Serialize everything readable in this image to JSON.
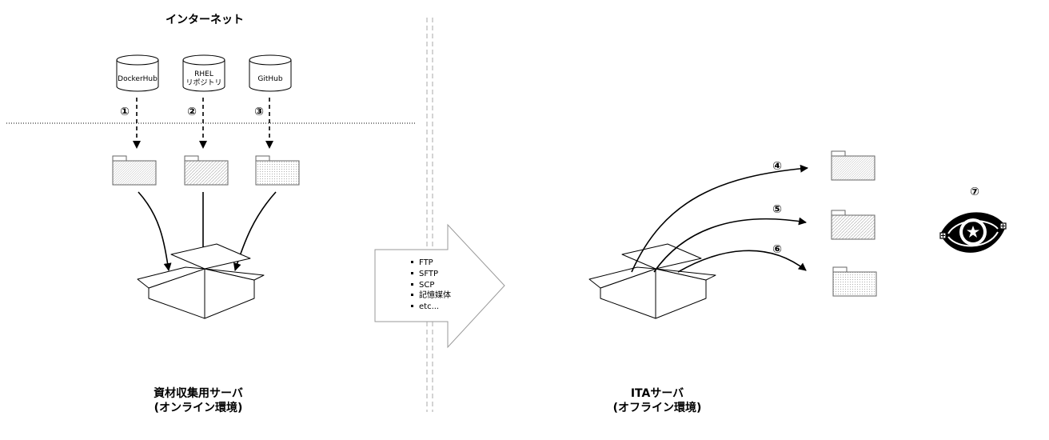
{
  "internet": {
    "title": "インターネット"
  },
  "repositories": [
    {
      "lines": [
        "DockerHub"
      ]
    },
    {
      "lines": [
        "RHEL",
        "リポジトリ"
      ]
    },
    {
      "lines": [
        "GitHub"
      ]
    }
  ],
  "step_numbers": {
    "s1": "①",
    "s2": "②",
    "s3": "③",
    "s4": "④",
    "s5": "⑤",
    "s6": "⑥",
    "s7": "⑦"
  },
  "transfer": {
    "methods": [
      "FTP",
      "SFTP",
      "SCP",
      "記憶媒体",
      "etc..."
    ]
  },
  "collection_server": {
    "line1": "資材収集用サーバ",
    "line2": "(オンライン環境)"
  },
  "ita_server": {
    "line1": "ITAサーバ",
    "line2": "(オフライン環境)"
  },
  "colors": {
    "stroke": "#000000",
    "folder_stroke": "#666666",
    "pattern": "#b5b5b5"
  }
}
